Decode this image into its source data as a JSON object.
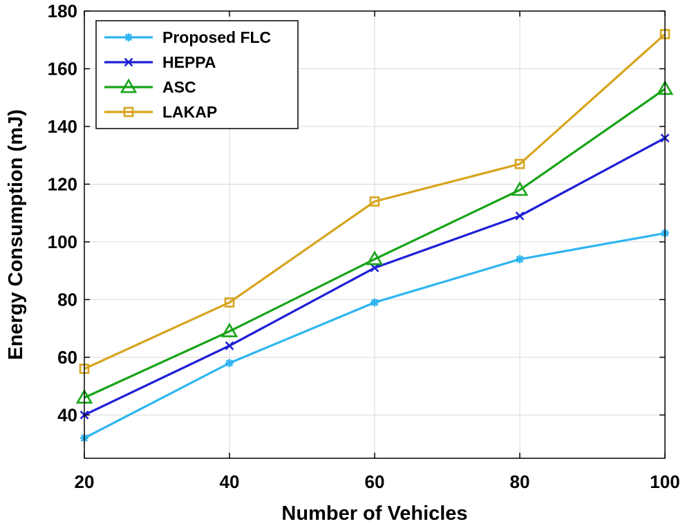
{
  "chart_data": {
    "type": "line",
    "title": "",
    "xlabel": "Number of Vehicles",
    "ylabel": "Energy Consumption (mJ)",
    "x": [
      20,
      40,
      60,
      80,
      100
    ],
    "xlim": [
      20,
      100
    ],
    "ylim": [
      25,
      180
    ],
    "xticks": [
      20,
      40,
      60,
      80,
      100
    ],
    "yticks": [
      40,
      60,
      80,
      100,
      120,
      140,
      160,
      180
    ],
    "grid": true,
    "legend_position": "top-left",
    "series": [
      {
        "name": "Proposed FLC",
        "marker": "asterisk",
        "color": "#2eb5f0",
        "values": [
          32,
          58,
          79,
          94,
          103
        ]
      },
      {
        "name": "HEPPA",
        "marker": "x",
        "color": "#1f1fd6",
        "values": [
          40,
          64,
          91,
          109,
          136
        ]
      },
      {
        "name": "ASC",
        "marker": "triangle",
        "color": "#17a317",
        "values": [
          46,
          69,
          94,
          118,
          153
        ]
      },
      {
        "name": "LAKAP",
        "marker": "square",
        "color": "#d6a41d",
        "values": [
          56,
          79,
          114,
          127,
          172
        ]
      }
    ]
  }
}
